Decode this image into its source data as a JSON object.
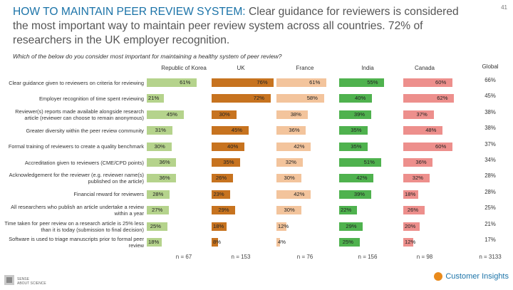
{
  "page_number": "41",
  "title_highlight": "HOW TO MAINTAIN PEER REVIEW SYSTEM:",
  "title_rest": " Clear guidance for reviewers is considered the most important way to maintain peer review system across all countries. 72% of researchers in the UK employer recognition.",
  "question": "Which of the below do you consider most important for maintaining a healthy system of peer review?",
  "chart_data": {
    "type": "bar",
    "categories": [
      "Clear guidance given to reviewers on criteria for reviewing",
      "Employer recognition of time spent reviewing",
      "Reviewer(s) reports made available alongside research article (reviewer can choose to remain anonymous)",
      "Greater diversity within the peer review community",
      "Formal training of reviewers to create a quality benchmark",
      "Accreditation given to reviewers (CME/CPD points)",
      "Acknowledgement for the reviewer (e.g. reviewer name(s) published on the article)",
      "Financial reward for reviewers",
      "All researchers who publish an article undertake a review within a year",
      "Time taken for peer review on a research article is 25% less than it is today (submission to final decision)",
      "Software is used to triage manuscripts prior to formal peer review"
    ],
    "series": [
      {
        "name": "Republic of Korea",
        "color": "#b5d38c",
        "values": [
          61,
          21,
          45,
          31,
          30,
          36,
          36,
          28,
          27,
          25,
          18
        ],
        "n": "n = 67"
      },
      {
        "name": "UK",
        "color": "#c7731f",
        "values": [
          76,
          72,
          30,
          45,
          40,
          35,
          26,
          23,
          29,
          18,
          8
        ],
        "n": "n = 153"
      },
      {
        "name": "France",
        "color": "#f3c49c",
        "values": [
          61,
          58,
          38,
          36,
          42,
          32,
          30,
          42,
          30,
          12,
          4
        ],
        "n": "n = 76"
      },
      {
        "name": "India",
        "color": "#4fb24e",
        "values": [
          55,
          40,
          39,
          35,
          35,
          51,
          42,
          39,
          22,
          29,
          25
        ],
        "n": "n = 156"
      },
      {
        "name": "Canada",
        "color": "#ed8f8c",
        "values": [
          60,
          62,
          37,
          48,
          60,
          36,
          32,
          18,
          26,
          20,
          12
        ],
        "n": "n = 98"
      }
    ],
    "global": {
      "name": "Global",
      "values": [
        66,
        45,
        38,
        38,
        37,
        34,
        28,
        28,
        25,
        21,
        17
      ],
      "n": "n = 3133"
    },
    "value_suffix": "%"
  },
  "brand": "Customer Insights",
  "logo_text": "SENSE ABOUT SCIENCE"
}
